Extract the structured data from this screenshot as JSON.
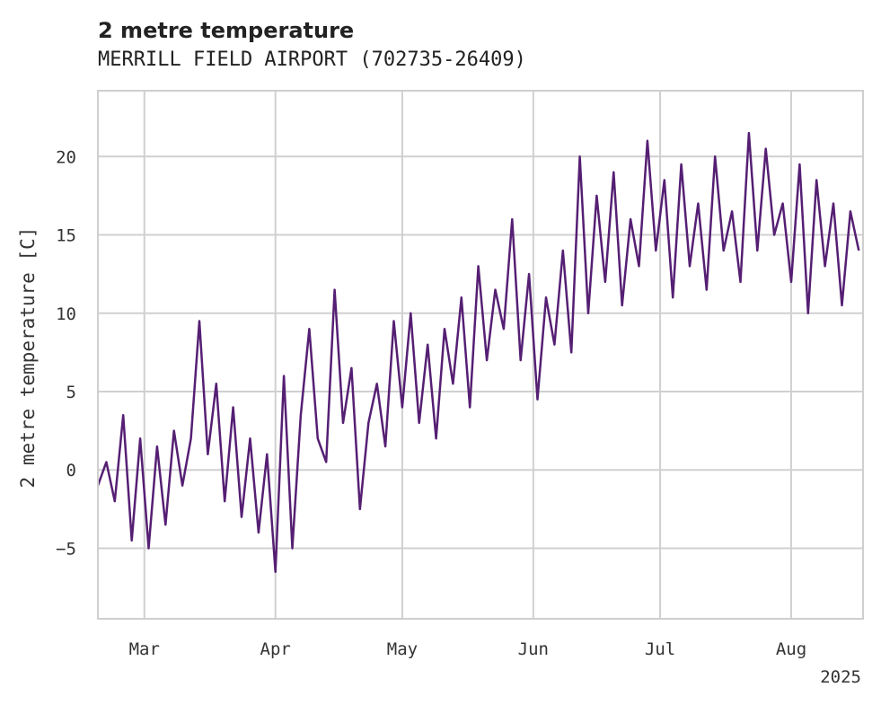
{
  "chart_data": {
    "type": "line",
    "title": "2 metre temperature",
    "subtitle": "MERRILL FIELD AIRPORT (702735-26409)",
    "ylabel": "2 metre temperature [C]",
    "xlabel": "",
    "x_tick_labels": [
      "Mar",
      "Apr",
      "May",
      "Jun",
      "Jul",
      "Aug"
    ],
    "x_tick_dates": [
      "2025-03-01",
      "2025-04-01",
      "2025-05-01",
      "2025-06-01",
      "2025-07-01",
      "2025-08-01"
    ],
    "x_offset_label": "2025",
    "xlim": [
      "2025-02-18",
      "2025-08-18"
    ],
    "ylim": [
      -9.5,
      24.2
    ],
    "y_ticks": [
      -5,
      0,
      5,
      10,
      15,
      20
    ],
    "y_tick_labels": [
      "−5",
      "0",
      "5",
      "10",
      "15",
      "20"
    ],
    "grid": true,
    "color": "#551f73",
    "series": [
      {
        "x": [
          "2025-02-18",
          "2025-02-20",
          "2025-02-22",
          "2025-02-24",
          "2025-02-26",
          "2025-02-28",
          "2025-03-02",
          "2025-03-04",
          "2025-03-06",
          "2025-03-08",
          "2025-03-10",
          "2025-03-12",
          "2025-03-14",
          "2025-03-16",
          "2025-03-18",
          "2025-03-20",
          "2025-03-22",
          "2025-03-24",
          "2025-03-26",
          "2025-03-28",
          "2025-03-30",
          "2025-04-01",
          "2025-04-03",
          "2025-04-05",
          "2025-04-07",
          "2025-04-09",
          "2025-04-11",
          "2025-04-13",
          "2025-04-15",
          "2025-04-17",
          "2025-04-19",
          "2025-04-21",
          "2025-04-23",
          "2025-04-25",
          "2025-04-27",
          "2025-04-29",
          "2025-05-01",
          "2025-05-03",
          "2025-05-05",
          "2025-05-07",
          "2025-05-09",
          "2025-05-11",
          "2025-05-13",
          "2025-05-15",
          "2025-05-17",
          "2025-05-19",
          "2025-05-21",
          "2025-05-23",
          "2025-05-25",
          "2025-05-27",
          "2025-05-29",
          "2025-05-31",
          "2025-06-02",
          "2025-06-04",
          "2025-06-06",
          "2025-06-08",
          "2025-06-10",
          "2025-06-12",
          "2025-06-14",
          "2025-06-16",
          "2025-06-18",
          "2025-06-20",
          "2025-06-22",
          "2025-06-24",
          "2025-06-26",
          "2025-06-28",
          "2025-06-30",
          "2025-07-02",
          "2025-07-04",
          "2025-07-06",
          "2025-07-08",
          "2025-07-10",
          "2025-07-12",
          "2025-07-14",
          "2025-07-16",
          "2025-07-18",
          "2025-07-20",
          "2025-07-22",
          "2025-07-24",
          "2025-07-26",
          "2025-07-28",
          "2025-07-30",
          "2025-08-01",
          "2025-08-03",
          "2025-08-05",
          "2025-08-07",
          "2025-08-09",
          "2025-08-11",
          "2025-08-13",
          "2025-08-15",
          "2025-08-17"
        ],
        "values": [
          -1.0,
          0.5,
          -2.0,
          3.5,
          -4.5,
          2.0,
          -5.0,
          1.5,
          -3.5,
          2.5,
          -1.0,
          2.0,
          9.5,
          1.0,
          5.5,
          -2.0,
          4.0,
          -3.0,
          2.0,
          -4.0,
          1.0,
          -6.5,
          6.0,
          -5.0,
          3.5,
          9.0,
          2.0,
          0.5,
          11.5,
          3.0,
          6.5,
          -2.5,
          3.0,
          5.5,
          1.5,
          9.5,
          4.0,
          10.0,
          3.0,
          8.0,
          2.0,
          9.0,
          5.5,
          11.0,
          4.0,
          13.0,
          7.0,
          11.5,
          9.0,
          16.0,
          7.0,
          12.5,
          4.5,
          11.0,
          8.0,
          14.0,
          7.5,
          20.0,
          10.0,
          17.5,
          12.0,
          19.0,
          10.5,
          16.0,
          13.0,
          21.0,
          14.0,
          18.5,
          11.0,
          19.5,
          13.0,
          17.0,
          11.5,
          20.0,
          14.0,
          16.5,
          12.0,
          21.5,
          14.0,
          20.5,
          15.0,
          17.0,
          12.0,
          19.5,
          10.0,
          18.5,
          13.0,
          17.0,
          10.5,
          16.5,
          14.0
        ]
      }
    ]
  }
}
